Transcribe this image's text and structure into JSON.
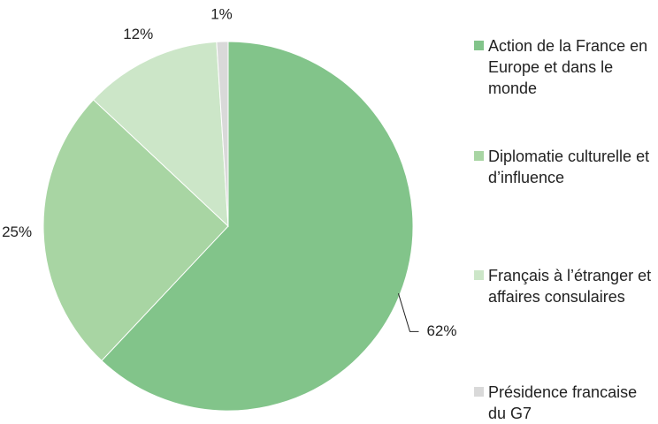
{
  "chart_data": {
    "type": "pie",
    "categories": [
      "Action de la France en Europe et dans le monde",
      "Diplomatie culturelle et d’influence",
      "Français à l’étranger et affaires consulaires",
      "Présidence francaise du G7"
    ],
    "values": [
      62,
      25,
      12,
      1
    ],
    "value_labels": [
      "62%",
      "25%",
      "12%",
      "1%"
    ],
    "colors": [
      "#82c48a",
      "#a8d5a3",
      "#cce6c8",
      "#d9d9d9"
    ],
    "legend": "right"
  }
}
